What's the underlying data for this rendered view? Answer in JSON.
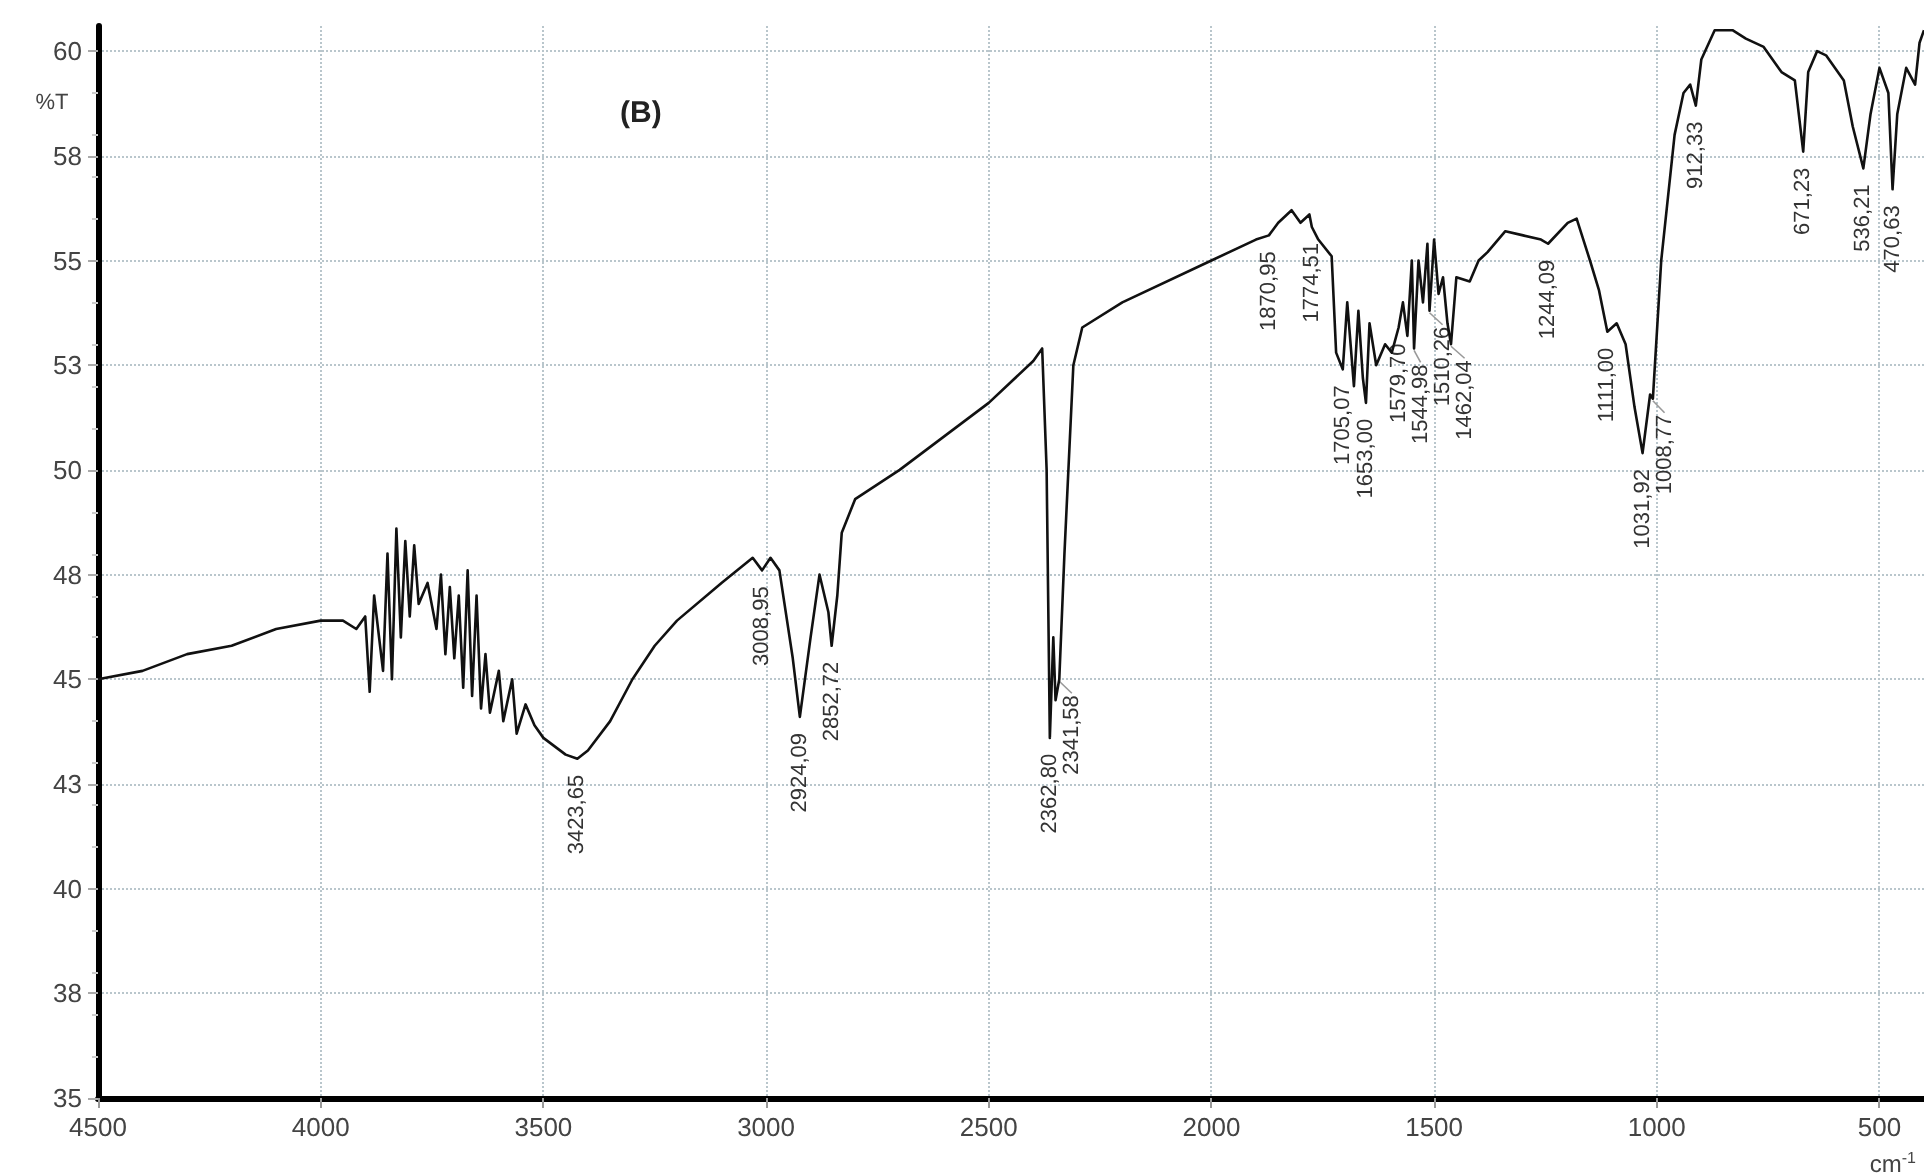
{
  "chart_data": {
    "type": "line",
    "title": "(B)",
    "xlabel": "cm$^{-1}$",
    "ylabel": "%T",
    "xlim": [
      4500,
      400
    ],
    "xticks": [
      4500,
      4000,
      3500,
      3000,
      2500,
      2000,
      1500,
      1000,
      500
    ],
    "ylim": [
      35,
      60.6
    ],
    "yticks": [
      35,
      {
        "value": 37.5,
        "label": "38"
      },
      40,
      {
        "value": 42.5,
        "label": "43"
      },
      45,
      {
        "value": 47.5,
        "label": "48"
      },
      50,
      {
        "value": 52.5,
        "label": "53"
      },
      55,
      {
        "value": 57.5,
        "label": "58"
      },
      60
    ],
    "grid": true,
    "marker": "none",
    "line_style": "solid",
    "series": [
      {
        "color": "#111111",
        "x": [
          4500,
          4400,
          4300,
          4200,
          4100,
          4000,
          3950,
          3920,
          3900,
          3890,
          3880,
          3860,
          3850,
          3840,
          3830,
          3820,
          3810,
          3800,
          3790,
          3780,
          3760,
          3740,
          3730,
          3720,
          3710,
          3700,
          3690,
          3680,
          3670,
          3660,
          3650,
          3640,
          3630,
          3620,
          3600,
          3590,
          3570,
          3560,
          3540,
          3520,
          3500,
          3450,
          3423.65,
          3400,
          3350,
          3300,
          3250,
          3200,
          3100,
          3030,
          3008.95,
          2990,
          2970,
          2940,
          2924.09,
          2900,
          2880,
          2860,
          2852.72,
          2840,
          2830,
          2800,
          2700,
          2600,
          2500,
          2400,
          2380,
          2370,
          2362.8,
          2355,
          2350,
          2341.58,
          2330,
          2310,
          2290,
          2200,
          2000,
          1900,
          1870.95,
          1850,
          1820,
          1800,
          1780,
          1774.51,
          1760,
          1730,
          1720,
          1705.07,
          1695,
          1680,
          1670,
          1660,
          1653,
          1645,
          1630,
          1610,
          1595,
          1579.7,
          1570,
          1560,
          1550,
          1544.98,
          1535,
          1525,
          1515,
          1510.26,
          1500,
          1490,
          1480,
          1470,
          1462.04,
          1450,
          1420,
          1400,
          1380,
          1340,
          1300,
          1260,
          1244.09,
          1200,
          1180,
          1150,
          1130,
          1111,
          1090,
          1070,
          1050,
          1031.92,
          1015,
          1008.77,
          990,
          960,
          940,
          925,
          912.33,
          900,
          870,
          830,
          800,
          760,
          720,
          690,
          671.23,
          660,
          640,
          620,
          580,
          560,
          536.21,
          520,
          500,
          480,
          470.63,
          460,
          440,
          420,
          410,
          400
        ],
        "values": [
          45.0,
          45.2,
          45.6,
          45.8,
          46.2,
          46.4,
          46.4,
          46.2,
          46.5,
          44.7,
          47.0,
          45.2,
          48.0,
          45.0,
          48.6,
          46.0,
          48.3,
          46.5,
          48.2,
          46.8,
          47.3,
          46.2,
          47.5,
          45.6,
          47.2,
          45.5,
          47.0,
          44.8,
          47.6,
          44.6,
          47.0,
          44.3,
          45.6,
          44.2,
          45.2,
          44.0,
          45.0,
          43.7,
          44.4,
          43.9,
          43.6,
          43.2,
          43.1,
          43.3,
          44.0,
          45.0,
          45.8,
          46.4,
          47.3,
          47.9,
          47.6,
          47.9,
          47.6,
          45.5,
          44.1,
          46.0,
          47.5,
          46.6,
          45.8,
          47.0,
          48.5,
          49.3,
          50.0,
          50.8,
          51.6,
          52.6,
          52.9,
          50.0,
          43.6,
          46.0,
          44.5,
          45.0,
          48.0,
          52.5,
          53.4,
          54.0,
          55.0,
          55.5,
          55.6,
          55.9,
          56.2,
          55.9,
          56.1,
          55.8,
          55.5,
          55.1,
          52.8,
          52.4,
          54.0,
          52.0,
          53.8,
          52.2,
          51.6,
          53.5,
          52.5,
          53.0,
          52.8,
          53.4,
          54.0,
          53.2,
          55.0,
          52.9,
          55.0,
          54.0,
          55.4,
          53.8,
          55.5,
          54.2,
          54.6,
          53.5,
          53.0,
          54.6,
          54.5,
          55.0,
          55.2,
          55.7,
          55.6,
          55.5,
          55.4,
          55.9,
          56.0,
          55.0,
          54.3,
          53.3,
          53.5,
          53.0,
          51.5,
          50.4,
          51.8,
          51.7,
          55.0,
          58.0,
          59.0,
          59.2,
          58.7,
          59.8,
          60.5,
          60.5,
          60.3,
          60.1,
          59.5,
          59.3,
          57.6,
          59.5,
          60.0,
          59.9,
          59.3,
          58.2,
          57.2,
          58.5,
          59.6,
          59.0,
          56.7,
          58.5,
          59.6,
          59.2,
          60.2,
          60.5
        ]
      }
    ],
    "annotations": [
      {
        "text": "3423,65",
        "x": 3423.65,
        "y": 43.1
      },
      {
        "text": "3008,95",
        "x": 3008.95,
        "y": 47.6
      },
      {
        "text": "2924,09",
        "x": 2924.09,
        "y": 44.1
      },
      {
        "text": "2852,72",
        "x": 2852.72,
        "y": 45.8
      },
      {
        "text": "2362,80",
        "x": 2362.8,
        "y": 43.6
      },
      {
        "text": "2341,58",
        "x": 2341.58,
        "y": 45.0
      },
      {
        "text": "1870,95",
        "x": 1870.95,
        "y": 55.6
      },
      {
        "text": "1774,51",
        "x": 1774.51,
        "y": 55.8
      },
      {
        "text": "1705,07",
        "x": 1705.07,
        "y": 52.4
      },
      {
        "text": "1653,00",
        "x": 1653.0,
        "y": 51.6
      },
      {
        "text": "1579,70",
        "x": 1579.7,
        "y": 53.4
      },
      {
        "text": "1544,98",
        "x": 1544.98,
        "y": 52.9
      },
      {
        "text": "1510,26",
        "x": 1510.26,
        "y": 53.8
      },
      {
        "text": "1462,04",
        "x": 1462.04,
        "y": 53.0
      },
      {
        "text": "1244,09",
        "x": 1244.09,
        "y": 55.4
      },
      {
        "text": "1111,00",
        "x": 1111.0,
        "y": 53.3
      },
      {
        "text": "1031,92",
        "x": 1031.92,
        "y": 50.4
      },
      {
        "text": "1008,77",
        "x": 1008.77,
        "y": 51.7
      },
      {
        "text": "912,33",
        "x": 912.33,
        "y": 58.7
      },
      {
        "text": "671,23",
        "x": 671.23,
        "y": 57.6
      },
      {
        "text": "536,21",
        "x": 536.21,
        "y": 57.2
      },
      {
        "text": "470,63",
        "x": 470.63,
        "y": 56.7
      }
    ]
  }
}
